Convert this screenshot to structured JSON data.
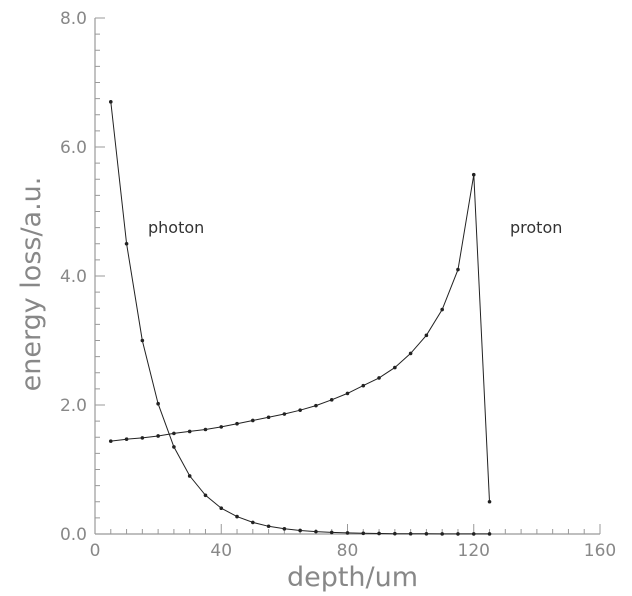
{
  "chart_data": {
    "type": "line",
    "title": "",
    "xlabel": "depth/um",
    "ylabel": "energy loss/a.u.",
    "xlim": [
      0,
      160
    ],
    "ylim": [
      0,
      8
    ],
    "x_ticks": [
      "0",
      "40",
      "80",
      "120",
      "160"
    ],
    "y_ticks": [
      "0.0",
      "2.0",
      "4.0",
      "6.0",
      "8.0"
    ],
    "grid": false,
    "legend": "none",
    "series": [
      {
        "name": "photon",
        "x": [
          5,
          10,
          15,
          20,
          25,
          30,
          35,
          40,
          45,
          50,
          55,
          60,
          65,
          70,
          75,
          80,
          85,
          90,
          95,
          100,
          105,
          110,
          115,
          120,
          125
        ],
        "y": [
          6.7,
          4.5,
          3.0,
          2.02,
          1.35,
          0.9,
          0.6,
          0.4,
          0.27,
          0.18,
          0.12,
          0.08,
          0.055,
          0.037,
          0.025,
          0.017,
          0.011,
          0.008,
          0.005,
          0.004,
          0.003,
          0.002,
          0.0015,
          0.001,
          0.001
        ]
      },
      {
        "name": "proton",
        "x": [
          5,
          10,
          15,
          20,
          25,
          30,
          35,
          40,
          45,
          50,
          55,
          60,
          65,
          70,
          75,
          80,
          85,
          90,
          95,
          100,
          105,
          110,
          115,
          120,
          125
        ],
        "y": [
          1.44,
          1.47,
          1.49,
          1.52,
          1.56,
          1.59,
          1.62,
          1.66,
          1.71,
          1.76,
          1.81,
          1.86,
          1.92,
          1.99,
          2.08,
          2.18,
          2.3,
          2.42,
          2.58,
          2.8,
          3.08,
          3.48,
          4.1,
          5.57,
          0.5
        ]
      }
    ],
    "annotations": [
      "photon",
      "proton"
    ]
  }
}
